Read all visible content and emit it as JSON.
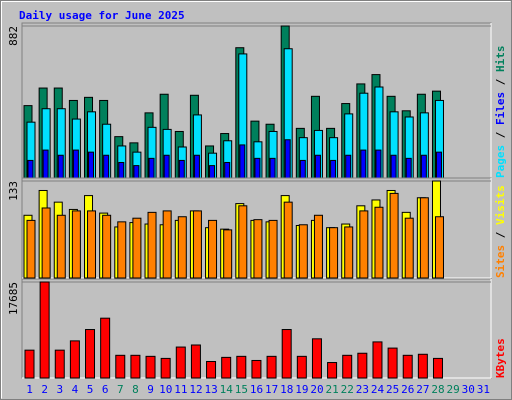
{
  "title": "Daily usage for June 2025",
  "separator": " / ",
  "chart_data": [
    {
      "type": "bar",
      "ylim": [
        0,
        882
      ],
      "yticks": [
        882
      ],
      "series": [
        {
          "name": "Pages",
          "color": "#00e0ff",
          "values": [
            324,
            402,
            402,
            342,
            384,
            312,
            186,
            150,
            294,
            282,
            180,
            366,
            144,
            216,
            720,
            210,
            270,
            750,
            234,
            276,
            234,
            372,
            492,
            528,
            384,
            354,
            378,
            450,
            null,
            null,
            null
          ]
        },
        {
          "name": "Files",
          "color": "#0000ff",
          "values": [
            102,
            162,
            132,
            162,
            150,
            132,
            90,
            72,
            114,
            132,
            102,
            132,
            72,
            90,
            192,
            114,
            114,
            222,
            102,
            132,
            102,
            132,
            162,
            162,
            132,
            114,
            132,
            150,
            null,
            null,
            null
          ]
        },
        {
          "name": "Hits",
          "color": "#00805c",
          "values": [
            420,
            522,
            522,
            450,
            468,
            450,
            240,
            204,
            378,
            486,
            270,
            480,
            186,
            258,
            756,
            330,
            312,
            882,
            288,
            474,
            288,
            432,
            546,
            600,
            474,
            390,
            486,
            504,
            null,
            null,
            null
          ]
        }
      ]
    },
    {
      "type": "bar",
      "ylim": [
        0,
        133
      ],
      "yticks": [
        133
      ],
      "series": [
        {
          "name": "Sites",
          "color": "#ff8000",
          "values": [
            79,
            96,
            86,
            92,
            92,
            86,
            77,
            82,
            90,
            92,
            84,
            92,
            79,
            66,
            99,
            80,
            79,
            104,
            73,
            86,
            69,
            70,
            92,
            97,
            116,
            82,
            110,
            84,
            null,
            null,
            null
          ]
        },
        {
          "name": "Visits",
          "color": "#ffff00",
          "values": [
            86,
            120,
            104,
            94,
            113,
            89,
            70,
            76,
            74,
            73,
            79,
            92,
            69,
            67,
            102,
            79,
            77,
            113,
            72,
            79,
            69,
            74,
            99,
            107,
            120,
            90,
            110,
            133,
            null,
            null,
            null
          ]
        }
      ]
    },
    {
      "type": "bar",
      "ylim": [
        0,
        17685
      ],
      "yticks": [
        17685
      ],
      "categories": [
        "1",
        "2",
        "3",
        "4",
        "5",
        "6",
        "7",
        "8",
        "9",
        "10",
        "11",
        "12",
        "13",
        "14",
        "15",
        "16",
        "17",
        "18",
        "19",
        "20",
        "21",
        "22",
        "23",
        "24",
        "25",
        "26",
        "27",
        "28",
        "29",
        "30",
        "31"
      ],
      "label_colors": [
        "#0000ff",
        "#0000ff",
        "#0000ff",
        "#0000ff",
        "#0000ff",
        "#0000ff",
        "#00805c",
        "#00805c",
        "#0000ff",
        "#0000ff",
        "#0000ff",
        "#0000ff",
        "#0000ff",
        "#00805c",
        "#00805c",
        "#0000ff",
        "#0000ff",
        "#0000ff",
        "#0000ff",
        "#0000ff",
        "#00805c",
        "#00805c",
        "#0000ff",
        "#0000ff",
        "#0000ff",
        "#0000ff",
        "#0000ff",
        "#00805c",
        "#00805c",
        "#0000ff",
        "#0000ff"
      ],
      "series": [
        {
          "name": "KBytes",
          "color": "#ff0000",
          "values": [
            5130,
            17685,
            5130,
            6840,
            8930,
            11020,
            4180,
            4180,
            3990,
            3610,
            5700,
            6080,
            3040,
            3800,
            3990,
            3230,
            3990,
            8930,
            3990,
            7220,
            2850,
            4180,
            4560,
            6650,
            5510,
            4180,
            4370,
            3610,
            null,
            null,
            null
          ]
        }
      ]
    }
  ]
}
